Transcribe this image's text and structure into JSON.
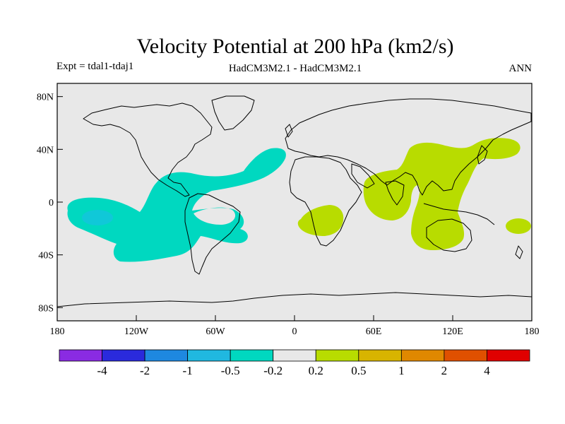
{
  "title": "Velocity Potential at 200 hPa (km2/s)",
  "subtitle_left": "Expt = tdal1-tdaj1",
  "subtitle_center": "HadCM3M2.1 - HadCM3M2.1",
  "subtitle_right": "ANN",
  "map": {
    "background_color": "#e8e8e8",
    "coastline_color": "#000000",
    "lat_ticks": [
      "80N",
      "40N",
      "0",
      "40S",
      "80S"
    ],
    "lon_ticks": [
      "180",
      "120W",
      "60W",
      "0",
      "60E",
      "120E",
      "180"
    ],
    "lat_tick_values": [
      80,
      40,
      0,
      -40,
      -80
    ],
    "lon_tick_values": [
      -180,
      -120,
      -60,
      0,
      60,
      120,
      180
    ],
    "lat_range": [
      -90,
      90
    ],
    "lon_range": [
      -180,
      180
    ]
  },
  "fields": {
    "negative_color": "#00d8c0",
    "negative_strong_color": "#10c8d8",
    "positive_color": "#b8dc00"
  },
  "colorbar": {
    "colors": [
      "#8a2be2",
      "#2a2adc",
      "#1e88e0",
      "#20b8e0",
      "#00d8c0",
      "#e8e8e8",
      "#b8dc00",
      "#d8b400",
      "#e08800",
      "#e05000",
      "#e00000"
    ],
    "labels": [
      "-4",
      "-2",
      "-1",
      "-0.5",
      "-0.2",
      "0.2",
      "0.5",
      "1",
      "2",
      "4"
    ]
  }
}
